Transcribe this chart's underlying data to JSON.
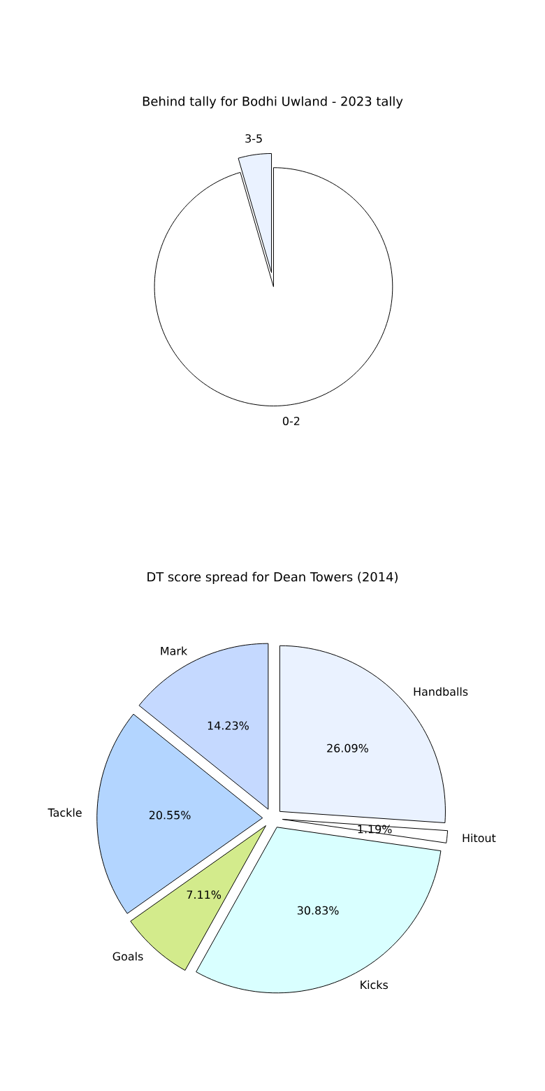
{
  "chart_data": [
    {
      "type": "pie",
      "title": "Behind tally for Bodhi Uwland - 2023 tally",
      "categories": [
        "0-2",
        "3-5"
      ],
      "values": [
        95.5,
        4.5
      ],
      "colors": [
        "#ffffff",
        "#eaf2ff"
      ]
    },
    {
      "type": "pie",
      "title": "DT score spread for Dean Towers (2014)",
      "categories": [
        "Handballs",
        "Hitout",
        "Kicks",
        "Goals",
        "Tackle",
        "Mark"
      ],
      "values": [
        26.09,
        1.19,
        30.83,
        7.11,
        20.55,
        14.23
      ],
      "colors": [
        "#eaf2ff",
        "#ffffff",
        "#d9ffff",
        "#d3eb8c",
        "#b3d5ff",
        "#c5d9ff"
      ],
      "value_labels": [
        "26.09%",
        "1.19%",
        "30.83%",
        "7.11%",
        "20.55%",
        "14.23%"
      ]
    }
  ]
}
